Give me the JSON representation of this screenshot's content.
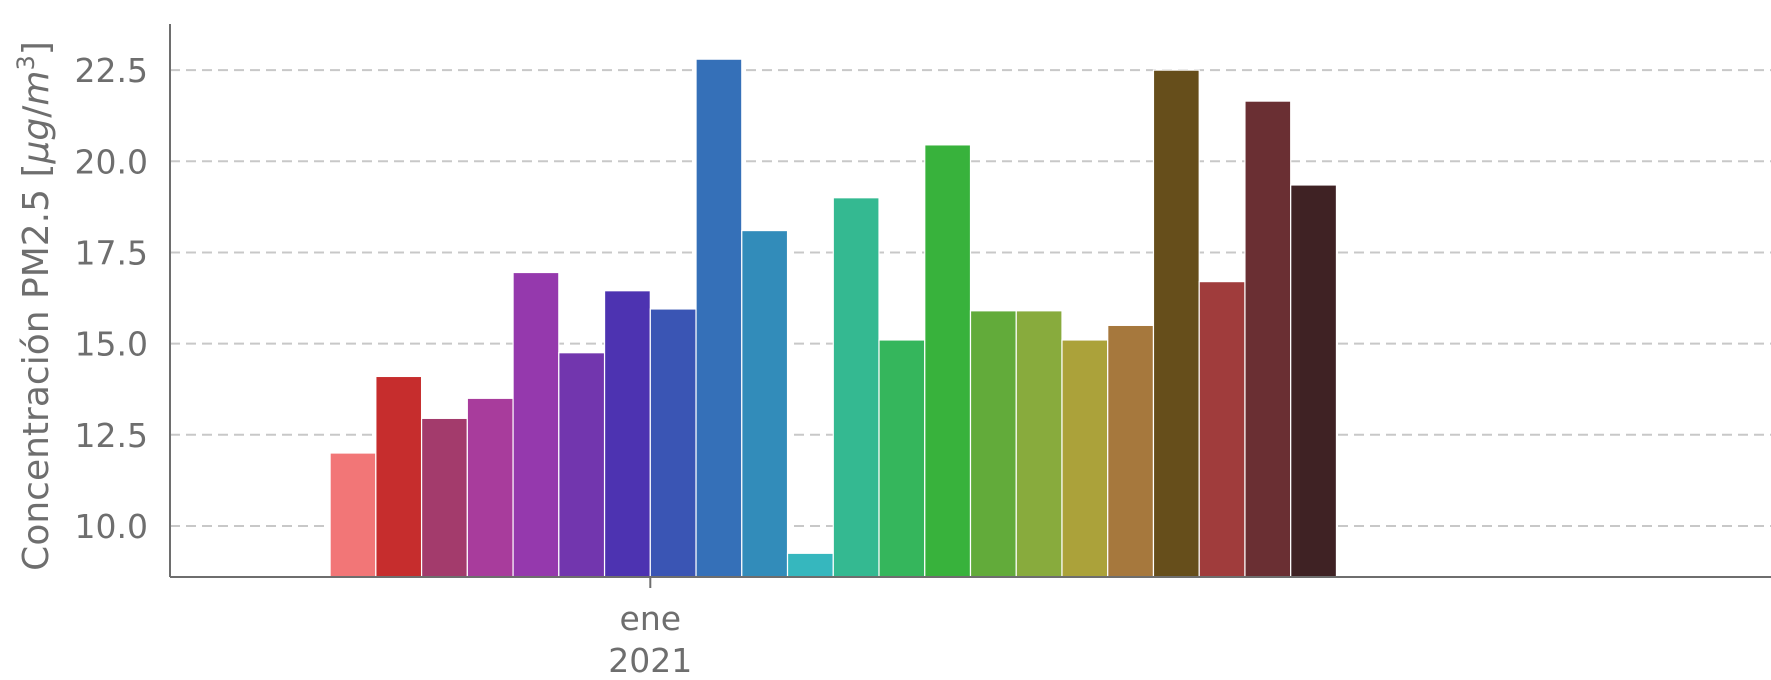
{
  "chart_data": {
    "type": "bar",
    "title": "",
    "ylabel": "Concentración PM2.5 [μg/m³]",
    "ylabel_parts": {
      "prefix": "Concentración PM2.5 [",
      "unit_mu": "μ",
      "unit_g": "g",
      "unit_slash": "/",
      "unit_m": "m",
      "unit_sup": "3",
      "suffix": "]"
    },
    "xlabel": "",
    "x_tick": {
      "month": "ene",
      "year": "2021"
    },
    "ylim": [
      8.6,
      23.6
    ],
    "yticks": [
      "10.0",
      "12.5",
      "15.0",
      "17.5",
      "20.0",
      "22.5"
    ],
    "grid": "y dashed",
    "legend": "none",
    "x_range_days": [
      -11,
      24
    ],
    "tick_day_index": 7,
    "days": [
      "2020-12-25",
      "2020-12-26",
      "2020-12-27",
      "2020-12-28",
      "2020-12-29",
      "2020-12-30",
      "2020-12-31",
      "2021-01-01",
      "2021-01-02",
      "2021-01-03",
      "2021-01-04",
      "2021-01-05",
      "2021-01-06",
      "2021-01-07",
      "2021-01-08",
      "2021-01-09",
      "2021-01-10",
      "2021-01-11",
      "2021-01-12",
      "2021-01-13",
      "2021-01-14",
      "2021-01-15"
    ],
    "values": [
      12.0,
      14.1,
      12.95,
      13.5,
      16.95,
      14.75,
      16.45,
      15.95,
      22.8,
      18.1,
      9.25,
      19.0,
      15.1,
      20.45,
      15.9,
      15.9,
      15.1,
      15.5,
      22.5,
      16.7,
      21.65,
      19.35
    ],
    "colors": [
      "#f27677",
      "#c62d2d",
      "#a33b6c",
      "#a83c9c",
      "#9539ad",
      "#7236ae",
      "#4d33b1",
      "#3a55b4",
      "#3570b8",
      "#328cba",
      "#36b7be",
      "#34b991",
      "#35b65c",
      "#38b23c",
      "#62ab3a",
      "#88ab3d",
      "#aba23a",
      "#a6783d",
      "#664e1b",
      "#a03c3c",
      "#6a2f33",
      "#3f2224"
    ]
  }
}
